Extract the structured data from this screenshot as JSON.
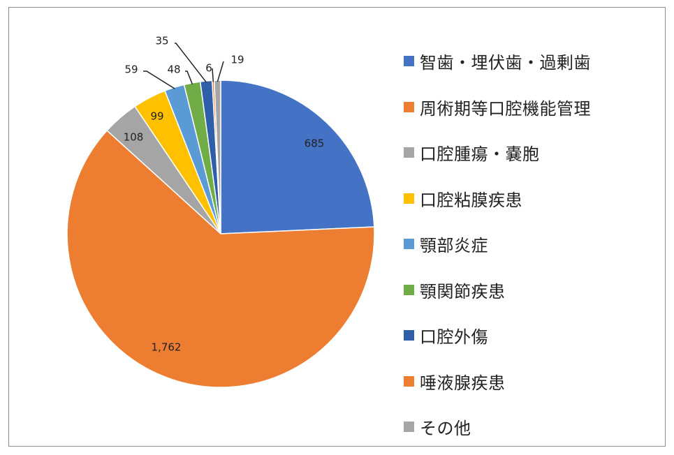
{
  "chart_data": {
    "type": "pie",
    "title": "",
    "categories": [
      "智歯・埋伏歯・過剰歯",
      "周術期等口腔機能管理",
      "口腔腫瘍・嚢胞",
      "口腔粘膜疾患",
      "顎部炎症",
      "顎関節疾患",
      "口腔外傷",
      "唾液腺疾患",
      "その他"
    ],
    "values": [
      685,
      1762,
      108,
      99,
      59,
      48,
      35,
      6,
      19
    ],
    "data_labels": [
      "685",
      "1,762",
      "108",
      "99",
      "59",
      "48",
      "35",
      "6",
      "19"
    ],
    "colors": [
      "#4472c4",
      "#ed7d31",
      "#a5a5a5",
      "#ffc000",
      "#5b9bd5",
      "#70ad47",
      "#2e5fa8",
      "#ed7d31",
      "#a5a5a5"
    ],
    "legend_position": "right"
  }
}
